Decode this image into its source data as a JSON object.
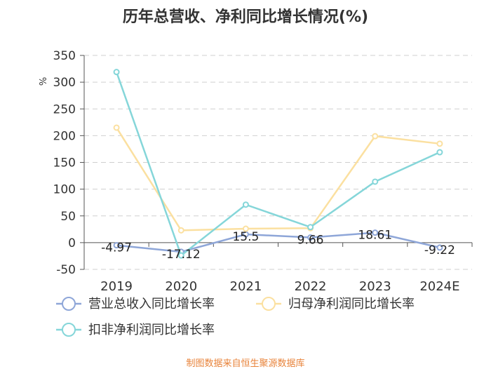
{
  "chart_data": {
    "type": "line",
    "title": "历年总营收、净利同比增长情况(%)",
    "ylabel": "%",
    "ylim": [
      -50,
      350
    ],
    "yticks": [
      -50,
      0,
      50,
      100,
      150,
      200,
      250,
      300,
      350
    ],
    "categories": [
      "2019",
      "2020",
      "2021",
      "2022",
      "2023",
      "2024E"
    ],
    "series": [
      {
        "name": "营业总收入同比增长率",
        "color": "#8ea6d8",
        "values": [
          -4.97,
          -17.12,
          15.5,
          9.66,
          18.61,
          -9.22
        ],
        "labels": [
          "-4.97",
          "-17.12",
          "15.5",
          "9.66",
          "18.61",
          "-9.22"
        ]
      },
      {
        "name": "归母净利润同比增长率",
        "color": "#fbe0a0",
        "values": [
          215,
          23,
          26,
          27,
          199,
          185
        ]
      },
      {
        "name": "扣非净利润同比增长率",
        "color": "#85d6d9",
        "values": [
          319,
          -24,
          71,
          29,
          114,
          169
        ]
      }
    ],
    "grid": true,
    "legend": "bottom"
  },
  "source": "制图数据来自恒生聚源数据库"
}
